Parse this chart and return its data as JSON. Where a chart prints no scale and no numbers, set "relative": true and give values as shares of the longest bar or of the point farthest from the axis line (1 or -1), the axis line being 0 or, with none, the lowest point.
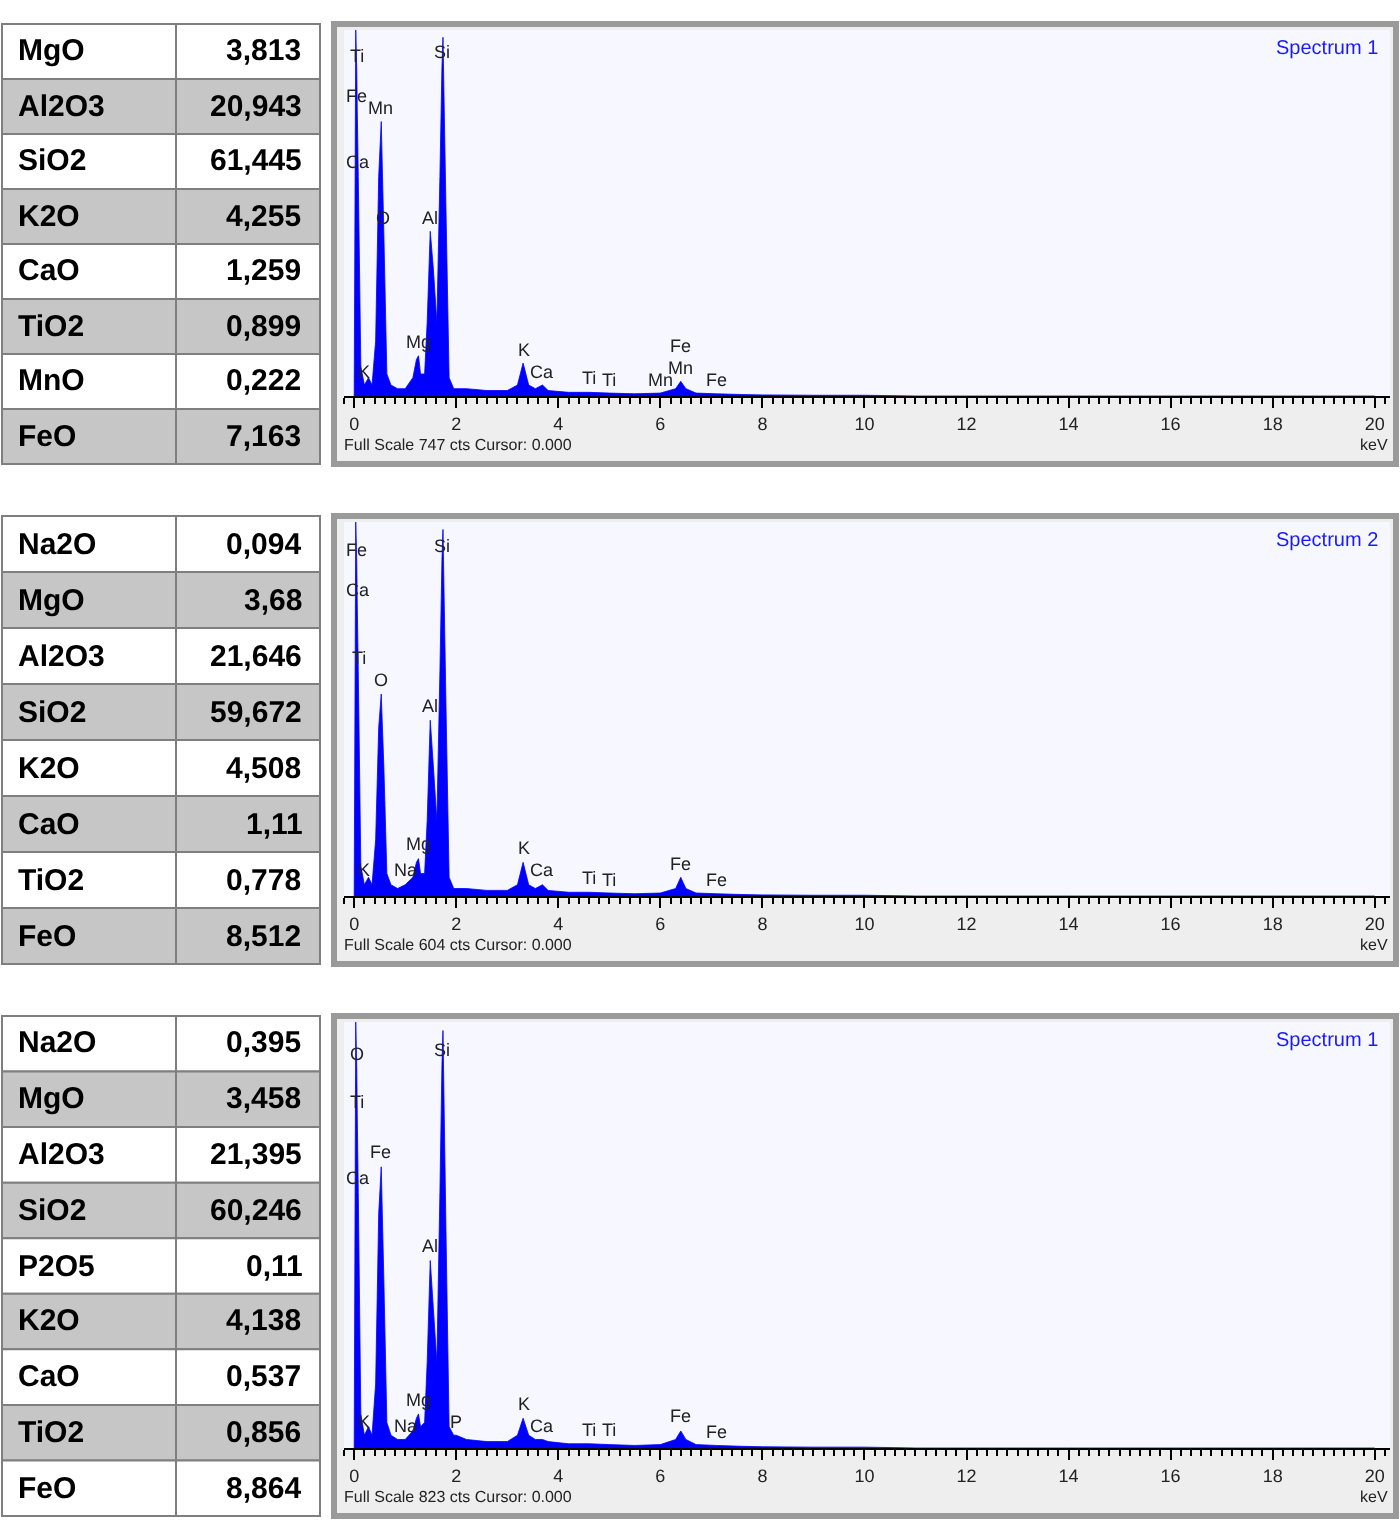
{
  "chart_data": [
    {
      "type": "other",
      "annotations": [
        "MgO",
        "3,813",
        "Al2O3",
        "20,943",
        "SiO2",
        "61,445",
        "K2O",
        "4,255",
        "CaO",
        "1,259",
        "TiO2",
        "0,899",
        "MnO",
        "0,222",
        "FeO",
        "7,163"
      ]
    },
    {
      "type": "area",
      "title": "Spectrum 1",
      "xlabel": "keV",
      "relative": true,
      "color": "#0000ff",
      "xlim": [
        -0.2,
        20.3
      ],
      "xticks": [
        0,
        2,
        4,
        6,
        8,
        10,
        12,
        14,
        16,
        18,
        20
      ],
      "x": [
        0,
        0.03,
        0.05,
        0.06,
        0.08,
        0.13,
        0.2,
        0.28,
        0.35,
        0.42,
        0.48,
        0.53,
        0.58,
        0.64,
        0.72,
        0.85,
        1.0,
        1.15,
        1.22,
        1.26,
        1.3,
        1.38,
        1.43,
        1.49,
        1.55,
        1.62,
        1.68,
        1.72,
        1.74,
        1.8,
        1.86,
        1.95,
        2.2,
        2.6,
        3.0,
        3.2,
        3.31,
        3.42,
        3.55,
        3.69,
        3.8,
        4.2,
        4.6,
        5.0,
        5.5,
        6.0,
        6.3,
        6.4,
        6.5,
        6.7,
        7.1,
        7.6,
        8.0,
        9,
        10,
        11,
        12,
        14,
        16,
        18,
        20
      ],
      "values": [
        0,
        1,
        0.89,
        0.78,
        0.6,
        0.08,
        0.03,
        0.05,
        0.03,
        0.15,
        0.6,
        0.75,
        0.45,
        0.06,
        0.03,
        0.02,
        0.02,
        0.05,
        0.1,
        0.11,
        0.06,
        0.06,
        0.2,
        0.45,
        0.35,
        0.2,
        0.6,
        0.9,
        0.98,
        0.5,
        0.05,
        0.02,
        0.02,
        0.015,
        0.015,
        0.03,
        0.09,
        0.03,
        0.02,
        0.03,
        0.015,
        0.01,
        0.01,
        0.008,
        0.006,
        0.008,
        0.02,
        0.04,
        0.02,
        0.008,
        0.006,
        0.004,
        0.003,
        0.002,
        0.002,
        0,
        0,
        0,
        0,
        0,
        0
      ],
      "annotations": [
        {
          "text": "Ti",
          "x": 0.05,
          "y": 0.89
        },
        {
          "text": "Fe",
          "x": 0.06,
          "y": 0.78
        },
        {
          "text": "Ca",
          "x": 0.08,
          "y": 0.6
        },
        {
          "text": "Mn",
          "x": 0.53,
          "y": 0.75
        },
        {
          "text": "O",
          "x": 0.58,
          "y": 0.45
        },
        {
          "text": "Mg",
          "x": 1.26,
          "y": 0.11
        },
        {
          "text": "Al",
          "x": 1.49,
          "y": 0.45
        },
        {
          "text": "Si",
          "x": 1.72,
          "y": 0.9
        },
        {
          "text": "K",
          "x": 0.2,
          "y": 0.03
        },
        {
          "text": "K",
          "x": 3.31,
          "y": 0.09
        },
        {
          "text": "Ca",
          "x": 3.69,
          "y": 0.03
        },
        {
          "text": "Ti",
          "x": 4.6,
          "y": 0.01
        },
        {
          "text": "Ti",
          "x": 5.0,
          "y": 0.008
        },
        {
          "text": "Mn",
          "x": 6.0,
          "y": 0.008
        },
        {
          "text": "Mn",
          "x": 6.4,
          "y": 0.04
        },
        {
          "text": "Fe",
          "x": 6.4,
          "y": 0.04
        },
        {
          "text": "Fe",
          "x": 7.1,
          "y": 0.006
        },
        "Full Scale 747 cts Cursor: 0.000"
      ]
    },
    {
      "type": "other",
      "annotations": [
        "Na2O",
        "0,094",
        "MgO",
        "3,68",
        "Al2O3",
        "21,646",
        "SiO2",
        "59,672",
        "K2O",
        "4,508",
        "CaO",
        "1,11",
        "TiO2",
        "0,778",
        "FeO",
        "8,512"
      ]
    },
    {
      "type": "area",
      "title": "Spectrum 2",
      "xlabel": "keV",
      "relative": true,
      "color": "#0000ff",
      "xlim": [
        -0.2,
        20.3
      ],
      "xticks": [
        0,
        2,
        4,
        6,
        8,
        10,
        12,
        14,
        16,
        18,
        20
      ],
      "x": [
        0,
        0.03,
        0.05,
        0.06,
        0.08,
        0.13,
        0.2,
        0.28,
        0.35,
        0.42,
        0.48,
        0.53,
        0.58,
        0.64,
        0.72,
        0.85,
        1.0,
        1.15,
        1.22,
        1.26,
        1.3,
        1.38,
        1.43,
        1.49,
        1.55,
        1.62,
        1.68,
        1.72,
        1.74,
        1.8,
        1.86,
        1.95,
        2.2,
        2.6,
        3.0,
        3.2,
        3.31,
        3.42,
        3.55,
        3.69,
        3.8,
        4.2,
        4.6,
        5.0,
        5.5,
        6.0,
        6.3,
        6.4,
        6.5,
        6.7,
        7.1,
        7.6,
        8.0,
        9,
        10,
        11,
        12,
        14,
        16,
        18,
        20
      ],
      "values": [
        0,
        1,
        0.89,
        0.78,
        0.6,
        0.08,
        0.03,
        0.05,
        0.03,
        0.15,
        0.45,
        0.54,
        0.35,
        0.06,
        0.03,
        0.02,
        0.03,
        0.05,
        0.09,
        0.1,
        0.06,
        0.06,
        0.2,
        0.47,
        0.35,
        0.2,
        0.6,
        0.9,
        0.98,
        0.5,
        0.05,
        0.02,
        0.02,
        0.015,
        0.015,
        0.03,
        0.09,
        0.03,
        0.02,
        0.03,
        0.015,
        0.01,
        0.01,
        0.008,
        0.006,
        0.008,
        0.02,
        0.05,
        0.02,
        0.008,
        0.006,
        0.004,
        0.003,
        0.002,
        0.002,
        0,
        0,
        0,
        0,
        0,
        0
      ],
      "annotations": [
        {
          "text": "Fe",
          "x": 0.05,
          "y": 0.89
        },
        {
          "text": "Ca",
          "x": 0.06,
          "y": 0.78
        },
        {
          "text": "Ti",
          "x": 0.08,
          "y": 0.6
        },
        {
          "text": "O",
          "x": 0.53,
          "y": 0.54
        },
        {
          "text": "Al",
          "x": 1.49,
          "y": 0.47
        },
        {
          "text": "Mg",
          "x": 1.26,
          "y": 0.1
        },
        {
          "text": "Si",
          "x": 1.72,
          "y": 0.9
        },
        {
          "text": "K",
          "x": 0.2,
          "y": 0.03
        },
        {
          "text": "Na",
          "x": 1.0,
          "y": 0.03
        },
        {
          "text": "K",
          "x": 3.31,
          "y": 0.09
        },
        {
          "text": "Ca",
          "x": 3.69,
          "y": 0.03
        },
        {
          "text": "Ti",
          "x": 4.6,
          "y": 0.01
        },
        {
          "text": "Ti",
          "x": 5.0,
          "y": 0.008
        },
        {
          "text": "Fe",
          "x": 6.4,
          "y": 0.05
        },
        {
          "text": "Fe",
          "x": 7.1,
          "y": 0.006
        },
        "Full Scale 604 cts Cursor: 0.000"
      ]
    },
    {
      "type": "other",
      "annotations": [
        "Na2O",
        "0,395",
        "MgO",
        "3,458",
        "Al2O3",
        "21,395",
        "SiO2",
        "60,246",
        "P2O5",
        "0,11",
        "K2O",
        "4,138",
        "CaO",
        "0,537",
        "TiO2",
        "0,856",
        "FeO",
        "8,864"
      ]
    },
    {
      "type": "area",
      "title": "Spectrum 1",
      "xlabel": "keV",
      "relative": true,
      "color": "#0000ff",
      "xlim": [
        -0.2,
        20.3
      ],
      "xticks": [
        0,
        2,
        4,
        6,
        8,
        10,
        12,
        14,
        16,
        18,
        20
      ],
      "x": [
        0,
        0.03,
        0.05,
        0.06,
        0.08,
        0.13,
        0.2,
        0.28,
        0.35,
        0.42,
        0.48,
        0.53,
        0.58,
        0.64,
        0.72,
        0.85,
        1.0,
        1.15,
        1.22,
        1.26,
        1.3,
        1.38,
        1.43,
        1.49,
        1.55,
        1.62,
        1.68,
        1.72,
        1.74,
        1.8,
        1.86,
        1.95,
        2.0,
        2.2,
        2.6,
        3.0,
        3.2,
        3.31,
        3.42,
        3.55,
        3.69,
        3.8,
        4.2,
        4.6,
        5.0,
        5.5,
        6.0,
        6.3,
        6.4,
        6.5,
        6.7,
        7.1,
        7.6,
        8.0,
        9,
        10,
        11,
        12,
        14,
        16,
        18,
        20
      ],
      "values": [
        0,
        1,
        0.89,
        0.78,
        0.6,
        0.08,
        0.03,
        0.05,
        0.03,
        0.15,
        0.55,
        0.66,
        0.4,
        0.06,
        0.03,
        0.02,
        0.02,
        0.04,
        0.07,
        0.08,
        0.05,
        0.06,
        0.2,
        0.44,
        0.33,
        0.2,
        0.6,
        0.9,
        0.98,
        0.5,
        0.05,
        0.03,
        0.03,
        0.02,
        0.015,
        0.015,
        0.03,
        0.07,
        0.03,
        0.02,
        0.02,
        0.015,
        0.01,
        0.01,
        0.008,
        0.006,
        0.008,
        0.02,
        0.04,
        0.02,
        0.008,
        0.006,
        0.004,
        0.003,
        0.002,
        0.002,
        0,
        0,
        0,
        0,
        0,
        0
      ],
      "annotations": [
        {
          "text": "O",
          "x": 0.05,
          "y": 0.89
        },
        {
          "text": "Ti",
          "x": 0.06,
          "y": 0.78
        },
        {
          "text": "Fe",
          "x": 0.53,
          "y": 0.66
        },
        {
          "text": "Ca",
          "x": 0.08,
          "y": 0.6
        },
        {
          "text": "Al",
          "x": 1.49,
          "y": 0.44
        },
        {
          "text": "Mg",
          "x": 1.26,
          "y": 0.08
        },
        {
          "text": "Si",
          "x": 1.72,
          "y": 0.9
        },
        {
          "text": "K",
          "x": 0.2,
          "y": 0.03
        },
        {
          "text": "Na",
          "x": 1.0,
          "y": 0.02
        },
        {
          "text": "P",
          "x": 2.0,
          "y": 0.03
        },
        {
          "text": "K",
          "x": 3.31,
          "y": 0.07
        },
        {
          "text": "Ca",
          "x": 3.69,
          "y": 0.02
        },
        {
          "text": "Ti",
          "x": 4.6,
          "y": 0.01
        },
        {
          "text": "Ti",
          "x": 5.0,
          "y": 0.008
        },
        {
          "text": "Fe",
          "x": 6.4,
          "y": 0.04
        },
        {
          "text": "Fe",
          "x": 7.1,
          "y": 0.006
        },
        "Full Scale 823 cts Cursor: 0.000"
      ]
    }
  ]
}
